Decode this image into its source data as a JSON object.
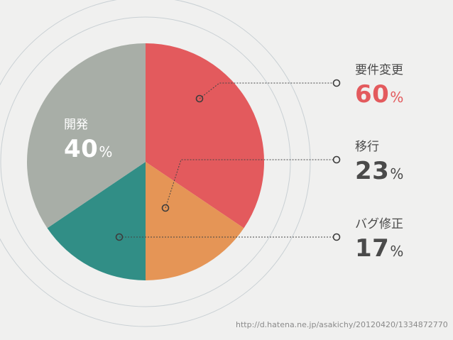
{
  "chart_data": {
    "type": "pie",
    "slices": [
      {
        "label": "要件変更",
        "value": 60,
        "color": "#e35a5d",
        "side": "right"
      },
      {
        "label": "移行",
        "value": 23,
        "color": "#e59556",
        "side": "right"
      },
      {
        "label": "バグ修正",
        "value": 17,
        "color": "#318e86",
        "side": "right"
      },
      {
        "label": "開発",
        "value": 40,
        "color": "#a8aea7",
        "side": "left"
      }
    ],
    "unit": "%"
  },
  "source": "http://d.hatena.ne.jp/asakichy/20120420/1334872770"
}
